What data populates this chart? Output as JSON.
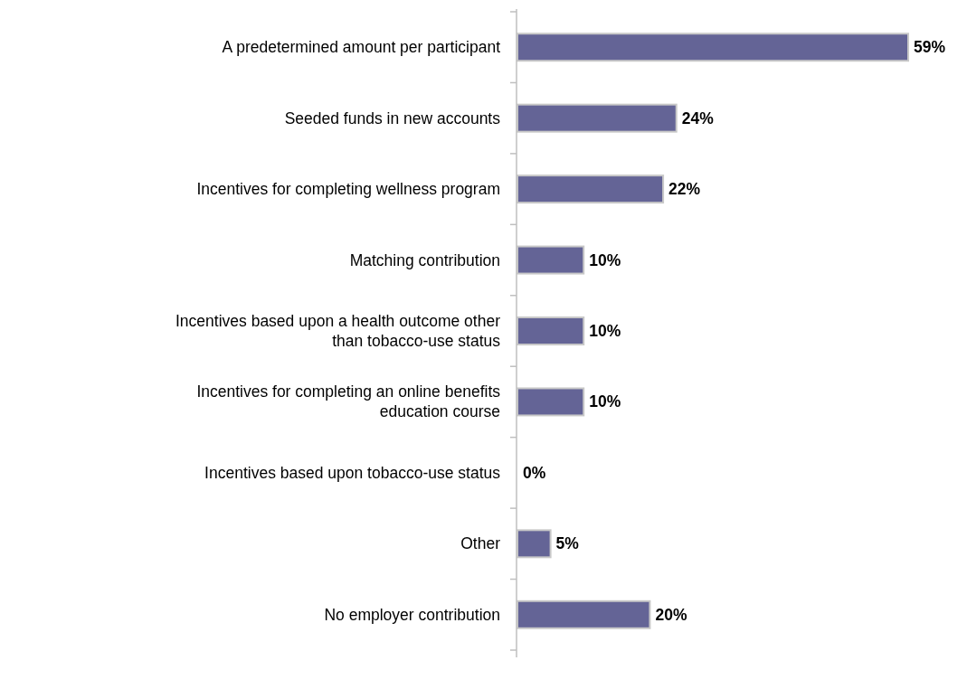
{
  "chart_data": {
    "type": "bar",
    "orientation": "horizontal",
    "relative": false,
    "categories": [
      "A predetermined amount per participant",
      "Seeded funds in new accounts",
      "Incentives for completing wellness program",
      "Matching contribution",
      "Incentives based upon a health outcome other than tobacco-use status",
      "Incentives for completing an online benefits education course",
      "Incentives based upon tobacco-use status",
      "Other",
      "No employer contribution"
    ],
    "values": [
      59,
      24,
      22,
      10,
      10,
      10,
      0,
      5,
      20
    ],
    "value_labels": [
      "59%",
      "24%",
      "22%",
      "10%",
      "10%",
      "10%",
      "0%",
      "5%",
      "20%"
    ],
    "color": "#646496"
  }
}
